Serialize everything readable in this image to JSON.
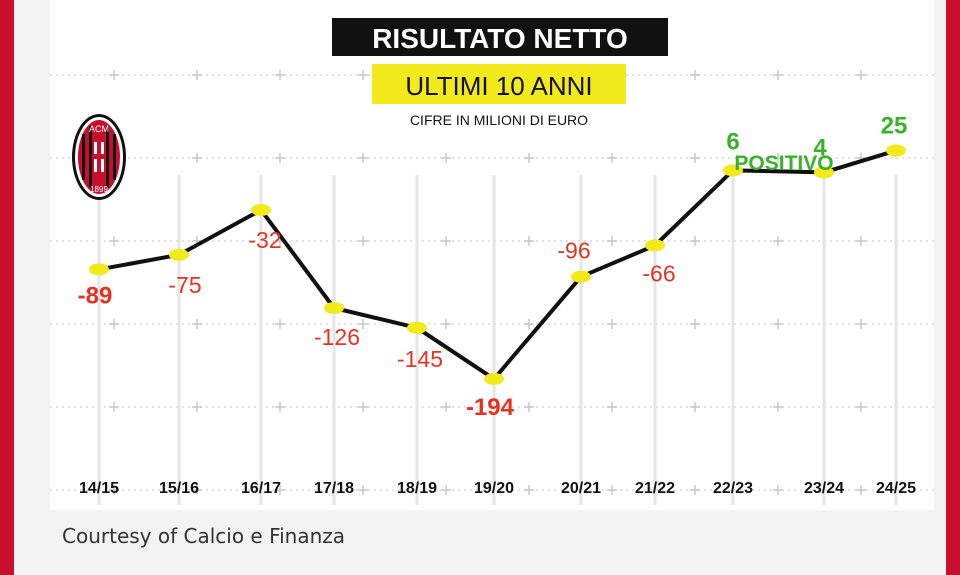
{
  "header": {
    "title": "RISULTATO NETTO",
    "subtitle": "ULTIMI 10 ANNI",
    "units": "CIFRE IN MILIONI DI EURO"
  },
  "logo": {
    "name": "ac-milan-crest",
    "text_top": "ACM",
    "text_bottom": "1899"
  },
  "caption": "Courtesy of Calcio e Finanza",
  "colors": {
    "negative": "#e53323",
    "positive": "#3ab02b",
    "line": "#111111",
    "marker": "#f2ea1b",
    "title_bg": "#111111",
    "subtitle_bg": "#f2ea1b",
    "frame": "#c8102e"
  },
  "chart_data": {
    "type": "line",
    "title": "RISULTATO NETTO",
    "subtitle": "ULTIMI 10 ANNI",
    "ylabel": "",
    "xlabel": "",
    "unit_note": "CIFRE IN MILIONI DI EURO",
    "categories": [
      "14/15",
      "15/16",
      "16/17",
      "17/18",
      "18/19",
      "19/20",
      "20/21",
      "21/22",
      "22/23",
      "23/24",
      "24/25"
    ],
    "series": [
      {
        "values": [
          -89,
          -75,
          -32,
          -126,
          -145,
          -194,
          -96,
          -66,
          6,
          4,
          25
        ]
      }
    ],
    "labels": [
      "-89",
      "-75",
      "-32",
      "-126",
      "-145",
      "-194",
      "-96",
      "-66",
      "6",
      "4",
      "25"
    ],
    "bold_labels": [
      "-89",
      "-194"
    ],
    "annotation": "POSITIVO",
    "grid": true,
    "legend": "none"
  }
}
